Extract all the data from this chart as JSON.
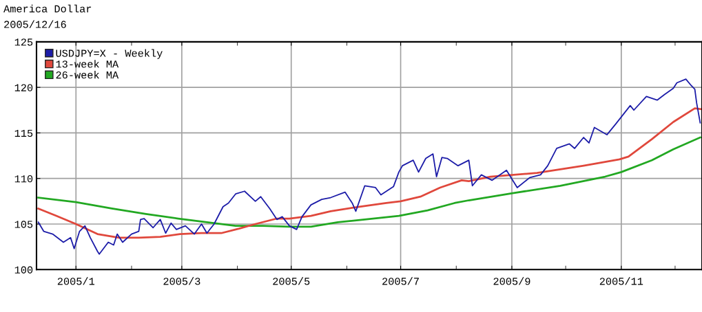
{
  "chart_data": {
    "type": "line",
    "title": "America Dollar",
    "subtitle": "2005/12/16",
    "xlim": [
      "2004-12-10",
      "2005-12-16"
    ],
    "xticks": [
      {
        "value": "2005-01-01",
        "label": "2005/1"
      },
      {
        "value": "2005-02-01",
        "label": null
      },
      {
        "value": "2005-03-01",
        "label": "2005/3"
      },
      {
        "value": "2005-04-01",
        "label": null
      },
      {
        "value": "2005-05-01",
        "label": "2005/5"
      },
      {
        "value": "2005-06-01",
        "label": null
      },
      {
        "value": "2005-07-01",
        "label": "2005/7"
      },
      {
        "value": "2005-08-01",
        "label": null
      },
      {
        "value": "2005-09-01",
        "label": "2005/9"
      },
      {
        "value": "2005-10-01",
        "label": null
      },
      {
        "value": "2005-11-01",
        "label": "2005/11"
      },
      {
        "value": "2005-12-01",
        "label": null
      }
    ],
    "ylim": [
      100,
      125
    ],
    "yticks": [
      100,
      105,
      110,
      115,
      120,
      125
    ],
    "grid": true,
    "legend": "top left",
    "marker": "none",
    "line_style": "solid",
    "series": [
      {
        "name": "USDJPY=X - Weekly",
        "color": "#1c1ca8",
        "x": [
          "2004-12-11",
          "2004-12-14",
          "2004-12-19",
          "2004-12-25",
          "2004-12-29",
          "2004-12-31",
          "2005-01-03",
          "2005-01-06",
          "2005-01-09",
          "2005-01-13",
          "2005-01-14",
          "2005-01-19",
          "2005-01-22",
          "2005-01-24",
          "2005-01-27",
          "2005-02-01",
          "2005-02-05",
          "2005-02-06",
          "2005-02-08",
          "2005-02-13",
          "2005-02-17",
          "2005-02-20",
          "2005-02-23",
          "2005-02-26",
          "2005-03-03",
          "2005-03-08",
          "2005-03-12",
          "2005-03-15",
          "2005-03-19",
          "2005-03-24",
          "2005-03-27",
          "2005-03-31",
          "2005-04-05",
          "2005-04-11",
          "2005-04-14",
          "2005-04-19",
          "2005-04-23",
          "2005-04-26",
          "2005-04-30",
          "2005-05-04",
          "2005-05-07",
          "2005-05-12",
          "2005-05-18",
          "2005-05-23",
          "2005-05-31",
          "2005-06-04",
          "2005-06-06",
          "2005-06-11",
          "2005-06-17",
          "2005-06-20",
          "2005-06-27",
          "2005-06-30",
          "2005-07-02",
          "2005-07-08",
          "2005-07-11",
          "2005-07-15",
          "2005-07-19",
          "2005-07-21",
          "2005-07-24",
          "2005-07-27",
          "2005-08-02",
          "2005-08-08",
          "2005-08-10",
          "2005-08-15",
          "2005-08-21",
          "2005-08-29",
          "2005-09-04",
          "2005-09-11",
          "2005-09-17",
          "2005-09-21",
          "2005-09-26",
          "2005-10-03",
          "2005-10-06",
          "2005-10-11",
          "2005-10-14",
          "2005-10-17",
          "2005-10-24",
          "2005-10-29",
          "2005-11-06",
          "2005-11-08",
          "2005-11-15",
          "2005-11-21",
          "2005-11-25",
          "2005-11-30",
          "2005-12-02",
          "2005-12-07",
          "2005-12-10",
          "2005-12-12",
          "2005-12-13",
          "2005-12-15"
        ],
        "values": [
          105.2,
          104.2,
          103.9,
          103.0,
          103.5,
          102.3,
          104.2,
          104.8,
          103.5,
          102.0,
          101.7,
          103.0,
          102.7,
          103.9,
          103.0,
          103.9,
          104.2,
          105.5,
          105.6,
          104.6,
          105.5,
          104.0,
          105.1,
          104.4,
          104.8,
          103.9,
          105.0,
          104.0,
          105.0,
          106.9,
          107.3,
          108.3,
          108.6,
          107.5,
          108.0,
          106.7,
          105.5,
          105.8,
          104.8,
          104.4,
          105.8,
          107.1,
          107.7,
          107.9,
          108.5,
          107.3,
          106.4,
          109.2,
          109.0,
          108.2,
          109.1,
          110.7,
          111.4,
          112.0,
          110.7,
          112.2,
          112.7,
          110.2,
          112.3,
          112.2,
          111.4,
          112.0,
          109.2,
          110.4,
          109.8,
          110.9,
          109.0,
          110.1,
          110.4,
          111.4,
          113.3,
          113.8,
          113.3,
          114.5,
          113.9,
          115.6,
          114.8,
          116.0,
          118.0,
          117.5,
          119.0,
          118.6,
          119.2,
          119.9,
          120.5,
          120.9,
          120.2,
          119.8,
          118.3,
          116.1
        ]
      },
      {
        "name": "13-week MA",
        "color": "#e0483c",
        "x": [
          "2004-12-11",
          "2004-12-21",
          "2005-01-01",
          "2005-01-13",
          "2005-01-25",
          "2005-02-05",
          "2005-02-17",
          "2005-02-28",
          "2005-03-12",
          "2005-03-23",
          "2005-04-02",
          "2005-04-11",
          "2005-04-23",
          "2005-04-30",
          "2005-05-12",
          "2005-05-23",
          "2005-06-08",
          "2005-06-23",
          "2005-07-01",
          "2005-07-12",
          "2005-07-23",
          "2005-08-04",
          "2005-08-08",
          "2005-08-20",
          "2005-09-15",
          "2005-10-11",
          "2005-10-31",
          "2005-11-05",
          "2005-11-18",
          "2005-11-30",
          "2005-12-12",
          "2005-12-16"
        ],
        "values": [
          106.7,
          105.9,
          105.0,
          103.9,
          103.5,
          103.5,
          103.6,
          103.9,
          104.0,
          104.0,
          104.5,
          105.0,
          105.6,
          105.6,
          105.9,
          106.4,
          106.9,
          107.3,
          107.5,
          108.0,
          109.0,
          109.8,
          109.7,
          110.2,
          110.6,
          111.4,
          112.1,
          112.4,
          114.3,
          116.2,
          117.7,
          117.6
        ]
      },
      {
        "name": "26-week MA",
        "color": "#22a822",
        "x": [
          "2004-12-11",
          "2005-01-01",
          "2005-01-21",
          "2005-02-09",
          "2005-02-27",
          "2005-03-15",
          "2005-03-31",
          "2005-04-15",
          "2005-04-30",
          "2005-05-12",
          "2005-05-27",
          "2005-06-11",
          "2005-06-30",
          "2005-07-16",
          "2005-07-31",
          "2005-08-08",
          "2005-09-02",
          "2005-09-28",
          "2005-10-23",
          "2005-11-01",
          "2005-11-18",
          "2005-11-30",
          "2005-12-15"
        ],
        "values": [
          107.9,
          107.4,
          106.7,
          106.1,
          105.6,
          105.2,
          104.8,
          104.8,
          104.7,
          104.7,
          105.2,
          105.5,
          105.9,
          106.5,
          107.3,
          107.6,
          108.4,
          109.2,
          110.2,
          110.7,
          112.0,
          113.2,
          114.5
        ]
      }
    ]
  }
}
